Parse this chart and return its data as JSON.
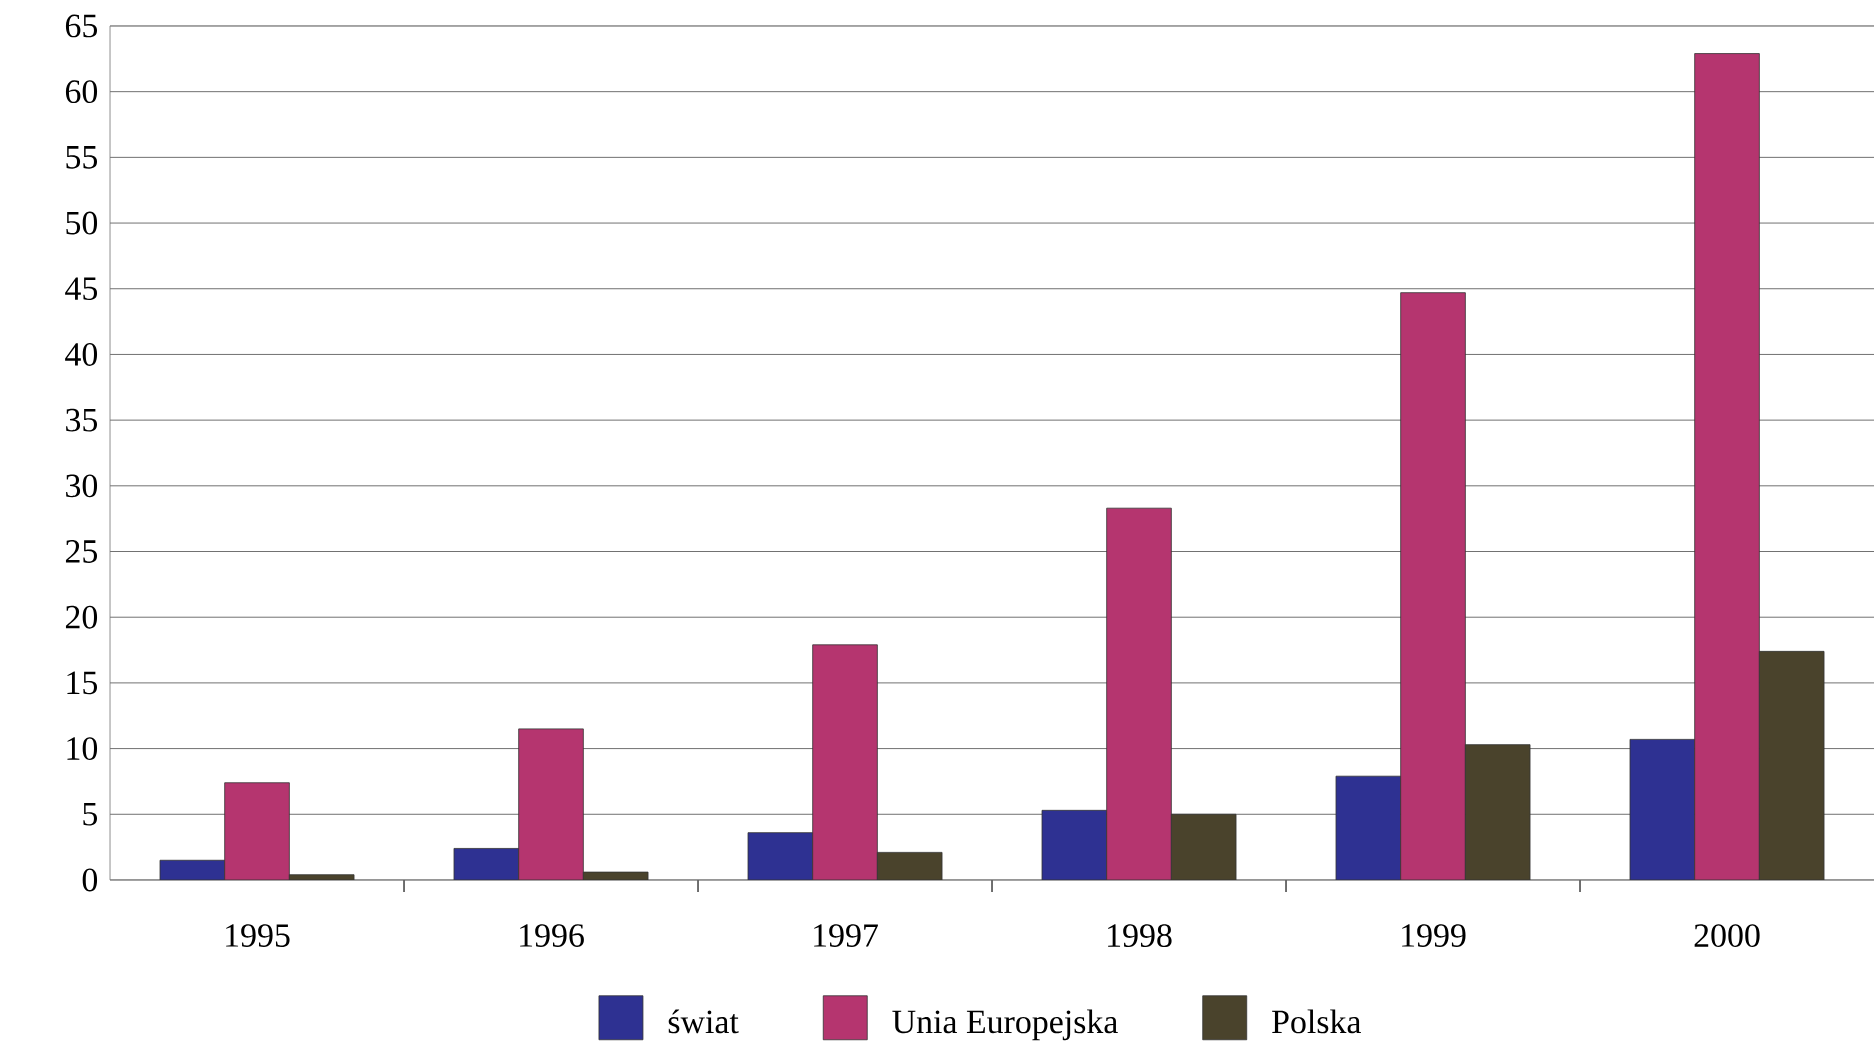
{
  "chart_data": {
    "type": "bar",
    "categories": [
      "1995",
      "1996",
      "1997",
      "1998",
      "1999",
      "2000"
    ],
    "series": [
      {
        "name": "świat",
        "color": "#2e3192",
        "values": [
          1.5,
          2.4,
          3.6,
          5.3,
          7.9,
          10.7
        ]
      },
      {
        "name": "Unia Europejska",
        "color": "#b5356f",
        "values": [
          7.4,
          11.5,
          17.9,
          28.3,
          44.7,
          62.9
        ]
      },
      {
        "name": "Polska",
        "color": "#4a432c",
        "values": [
          0.4,
          0.6,
          2.1,
          5.0,
          10.3,
          17.4
        ]
      }
    ],
    "ylim": [
      0,
      65
    ],
    "yticks": [
      0,
      5,
      10,
      15,
      20,
      25,
      30,
      35,
      40,
      45,
      50,
      55,
      60,
      65
    ],
    "grid": "y",
    "legend": "bottom"
  }
}
